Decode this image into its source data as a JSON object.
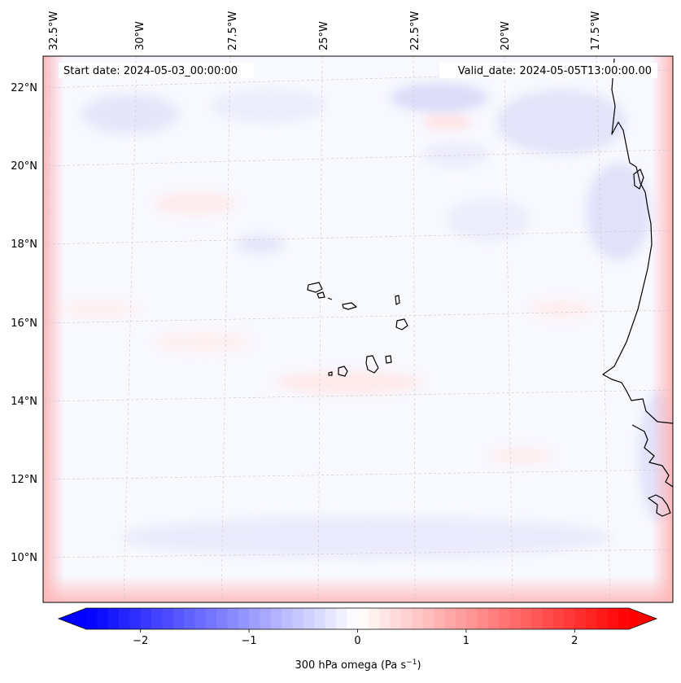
{
  "map": {
    "start_date": "Start date: 2024-05-03_00:00:00",
    "valid_date": "Valid_date: 2024-05-05T13:00:00.00",
    "lon_labels": [
      "32.5°W",
      "30°W",
      "27.5°W",
      "25°W",
      "22.5°W",
      "20°W",
      "17.5°W"
    ],
    "lat_labels": [
      "22°N",
      "20°N",
      "18°N",
      "16°N",
      "14°N",
      "12°N",
      "10°N"
    ],
    "field_variable": "300 hPa omega"
  },
  "colorbar": {
    "tick_labels": [
      "−2",
      "−1",
      "0",
      "1",
      "2"
    ],
    "tick_values": [
      -2,
      -1,
      0,
      1,
      2
    ],
    "min": -2.5,
    "max": 2.5,
    "label_main": "300 hPa omega (Pa s",
    "label_sup": "−1",
    "label_end": ")",
    "colors": {
      "negative": "#0000ff",
      "zero": "#ffffff",
      "positive": "#ff0000"
    }
  }
}
